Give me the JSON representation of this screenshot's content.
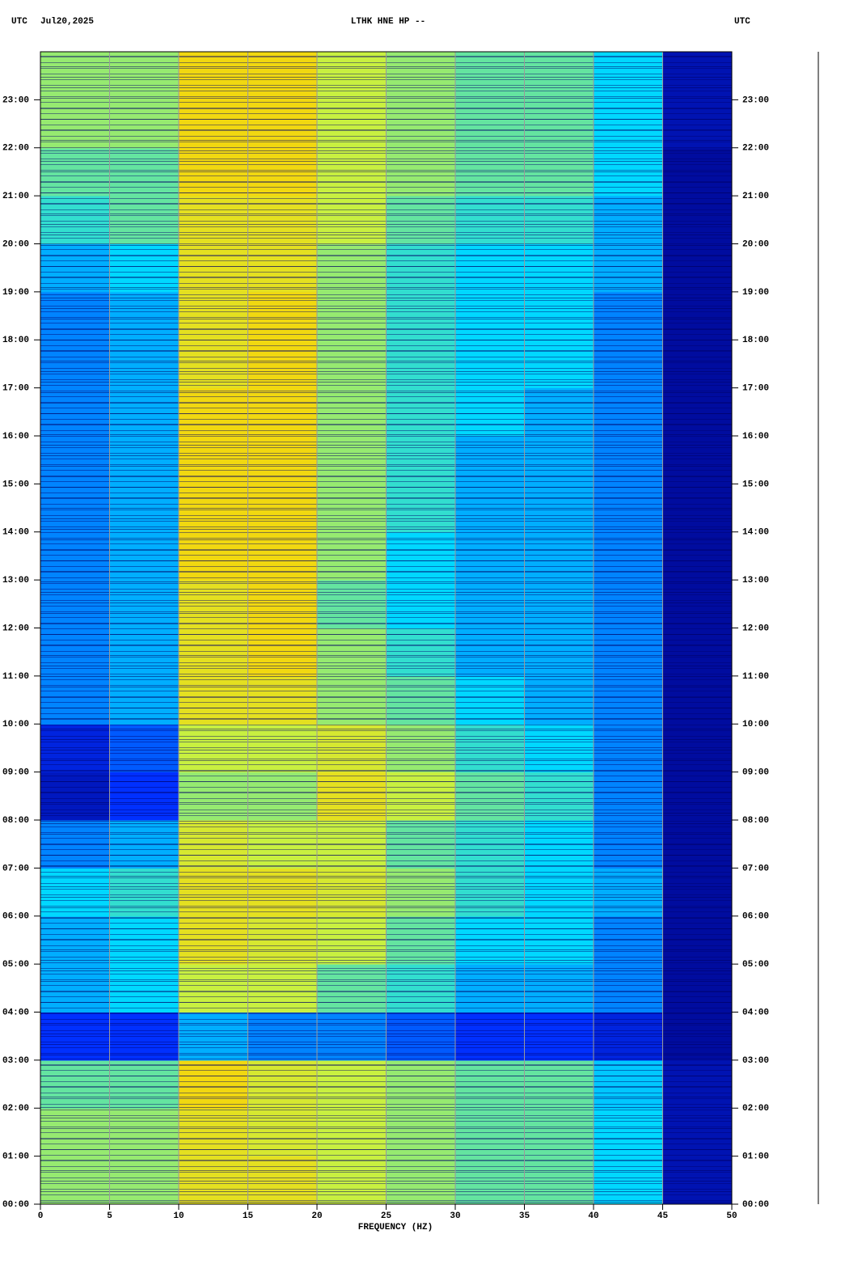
{
  "chart_data": {
    "type": "heatmap",
    "title": "LTHK HNE HP --",
    "time_zone": "UTC",
    "date": "Jul20,2025",
    "x_label": "FREQUENCY (HZ)",
    "xlim": [
      0,
      50
    ],
    "xticks": [
      0,
      5,
      10,
      15,
      20,
      25,
      30,
      35,
      40,
      45,
      50
    ],
    "ylim": [
      0,
      24
    ],
    "yticks": [
      {
        "value": 0,
        "label": "00:00"
      },
      {
        "value": 1,
        "label": "01:00"
      },
      {
        "value": 2,
        "label": "02:00"
      },
      {
        "value": 3,
        "label": "03:00"
      },
      {
        "value": 4,
        "label": "04:00"
      },
      {
        "value": 5,
        "label": "05:00"
      },
      {
        "value": 6,
        "label": "06:00"
      },
      {
        "value": 7,
        "label": "07:00"
      },
      {
        "value": 8,
        "label": "08:00"
      },
      {
        "value": 9,
        "label": "09:00"
      },
      {
        "value": 10,
        "label": "10:00"
      },
      {
        "value": 11,
        "label": "11:00"
      },
      {
        "value": 12,
        "label": "12:00"
      },
      {
        "value": 13,
        "label": "13:00"
      },
      {
        "value": 14,
        "label": "14:00"
      },
      {
        "value": 15,
        "label": "15:00"
      },
      {
        "value": 16,
        "label": "16:00"
      },
      {
        "value": 17,
        "label": "17:00"
      },
      {
        "value": 18,
        "label": "18:00"
      },
      {
        "value": 19,
        "label": "19:00"
      },
      {
        "value": 20,
        "label": "20:00"
      },
      {
        "value": 21,
        "label": "21:00"
      },
      {
        "value": 22,
        "label": "22:00"
      },
      {
        "value": 23,
        "label": "23:00"
      }
    ],
    "x_bins": [
      0,
      5,
      10,
      15,
      20,
      25,
      30,
      35,
      40,
      45,
      50
    ],
    "y_bins": [
      0,
      1,
      2,
      3,
      4,
      5,
      6,
      7,
      8,
      9,
      10,
      11,
      12,
      13,
      14,
      15,
      16,
      17,
      18,
      19,
      20,
      21,
      22,
      23,
      24
    ],
    "z": [
      [
        0.55,
        0.55,
        0.7,
        0.7,
        0.6,
        0.55,
        0.5,
        0.5,
        0.4,
        0.08
      ],
      [
        0.55,
        0.55,
        0.7,
        0.65,
        0.6,
        0.55,
        0.5,
        0.5,
        0.4,
        0.08
      ],
      [
        0.5,
        0.5,
        0.75,
        0.65,
        0.6,
        0.55,
        0.5,
        0.5,
        0.38,
        0.08
      ],
      [
        0.2,
        0.2,
        0.35,
        0.3,
        0.3,
        0.25,
        0.2,
        0.2,
        0.15,
        0.05
      ],
      [
        0.35,
        0.4,
        0.6,
        0.6,
        0.5,
        0.45,
        0.35,
        0.35,
        0.3,
        0.05
      ],
      [
        0.35,
        0.4,
        0.7,
        0.65,
        0.6,
        0.5,
        0.4,
        0.4,
        0.3,
        0.05
      ],
      [
        0.4,
        0.45,
        0.7,
        0.7,
        0.65,
        0.55,
        0.45,
        0.4,
        0.35,
        0.05
      ],
      [
        0.3,
        0.35,
        0.65,
        0.6,
        0.6,
        0.5,
        0.45,
        0.4,
        0.3,
        0.05
      ],
      [
        0.1,
        0.2,
        0.55,
        0.55,
        0.7,
        0.6,
        0.5,
        0.45,
        0.3,
        0.05
      ],
      [
        0.15,
        0.25,
        0.6,
        0.6,
        0.65,
        0.55,
        0.45,
        0.4,
        0.3,
        0.05
      ],
      [
        0.3,
        0.35,
        0.7,
        0.7,
        0.55,
        0.5,
        0.4,
        0.35,
        0.3,
        0.05
      ],
      [
        0.3,
        0.35,
        0.7,
        0.75,
        0.55,
        0.45,
        0.35,
        0.35,
        0.3,
        0.05
      ],
      [
        0.3,
        0.35,
        0.7,
        0.75,
        0.5,
        0.4,
        0.35,
        0.35,
        0.3,
        0.05
      ],
      [
        0.3,
        0.35,
        0.75,
        0.75,
        0.55,
        0.4,
        0.35,
        0.35,
        0.3,
        0.05
      ],
      [
        0.3,
        0.35,
        0.75,
        0.75,
        0.55,
        0.45,
        0.35,
        0.35,
        0.3,
        0.05
      ],
      [
        0.3,
        0.35,
        0.75,
        0.75,
        0.55,
        0.45,
        0.35,
        0.35,
        0.3,
        0.05
      ],
      [
        0.3,
        0.35,
        0.75,
        0.75,
        0.55,
        0.45,
        0.4,
        0.35,
        0.3,
        0.05
      ],
      [
        0.3,
        0.35,
        0.7,
        0.75,
        0.55,
        0.45,
        0.4,
        0.4,
        0.3,
        0.05
      ],
      [
        0.3,
        0.35,
        0.7,
        0.75,
        0.55,
        0.45,
        0.4,
        0.4,
        0.3,
        0.05
      ],
      [
        0.35,
        0.4,
        0.7,
        0.7,
        0.55,
        0.45,
        0.4,
        0.4,
        0.35,
        0.05
      ],
      [
        0.45,
        0.5,
        0.7,
        0.7,
        0.6,
        0.5,
        0.45,
        0.45,
        0.35,
        0.05
      ],
      [
        0.5,
        0.5,
        0.75,
        0.75,
        0.6,
        0.55,
        0.5,
        0.5,
        0.4,
        0.05
      ],
      [
        0.55,
        0.55,
        0.75,
        0.75,
        0.6,
        0.55,
        0.5,
        0.5,
        0.4,
        0.08
      ],
      [
        0.55,
        0.55,
        0.75,
        0.75,
        0.6,
        0.55,
        0.5,
        0.5,
        0.4,
        0.08
      ]
    ],
    "colormap": [
      "#00007f",
      "#0030ff",
      "#00d8ff",
      "#c8f040",
      "#ffd000",
      "#e00000"
    ],
    "grid": true
  }
}
